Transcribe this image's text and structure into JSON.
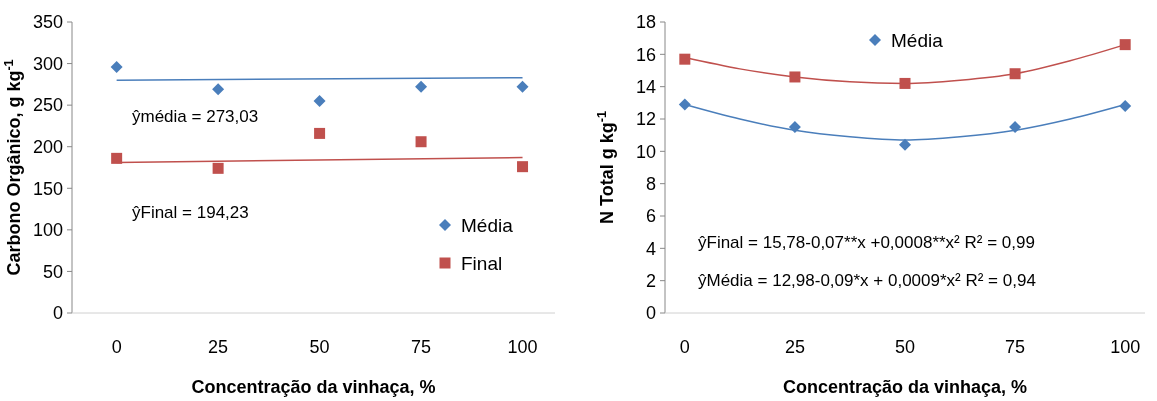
{
  "chart_data": [
    {
      "type": "scatter",
      "xlabel": "Concentração da vinhaça,  %",
      "ylabel": "Carbono Orgânico, g kg$^{-1}$",
      "xlim": [
        -11,
        108
      ],
      "xticks": [
        0,
        25,
        50,
        75,
        100
      ],
      "ylim": [
        0,
        350
      ],
      "yticks": [
        0,
        50,
        100,
        150,
        200,
        250,
        300,
        350
      ],
      "grid": false,
      "legend": "right",
      "annotations": [
        "ŷmédia = 273,03",
        "ŷFinal = 194,23"
      ],
      "series": [
        {
          "name": "Média",
          "color": "#4a7ebb",
          "marker": "diamond",
          "x": [
            0,
            25,
            50,
            75,
            100
          ],
          "values": [
            296,
            269,
            255,
            272,
            272
          ]
        },
        {
          "name": "Final",
          "color": "#c0504d",
          "marker": "square",
          "x": [
            0,
            25,
            50,
            75,
            100
          ],
          "values": [
            186,
            174,
            216,
            206,
            176
          ]
        },
        {
          "type": "line",
          "color": "#4a7ebb",
          "marker": "none",
          "x": [
            0,
            100
          ],
          "values": [
            280,
            283
          ]
        },
        {
          "type": "line",
          "color": "#c0504d",
          "marker": "none",
          "x": [
            0,
            100
          ],
          "values": [
            181,
            187
          ]
        }
      ]
    },
    {
      "type": "scatter",
      "xlabel": "Concentração da vinhaça,  %",
      "ylabel": "N Total  g kg$^{-1}$",
      "xlim": [
        -4.5,
        104.5
      ],
      "xticks": [
        0,
        25,
        50,
        75,
        100
      ],
      "ylim": [
        0,
        18
      ],
      "yticks": [
        0,
        2,
        4,
        6,
        8,
        10,
        12,
        14,
        16,
        18
      ],
      "grid": false,
      "legend": "top",
      "annotations": [
        "ŷFinal  = 15,78-0,07**x +0,0008**x²   R² = 0,99",
        "ŷMédia = 12,98-0,09*x + 0,0009*x²   R² = 0,94"
      ],
      "series": [
        {
          "name": "Média",
          "color": "#4a7ebb",
          "marker": "diamond",
          "x": [
            0,
            25,
            50,
            75,
            100
          ],
          "values": [
            12.9,
            11.5,
            10.4,
            11.5,
            12.8
          ]
        },
        {
          "color": "#c0504d",
          "marker": "square",
          "x": [
            0,
            25,
            50,
            75,
            100
          ],
          "values": [
            15.7,
            14.6,
            14.2,
            14.8,
            16.6
          ]
        },
        {
          "type": "line",
          "color": "#c0504d",
          "marker": "none",
          "x": [
            0,
            12.5,
            25,
            37.5,
            50,
            62.5,
            75,
            87.5,
            100
          ],
          "values": [
            15.8,
            15.1,
            14.6,
            14.3,
            14.2,
            14.4,
            14.8,
            15.6,
            16.6
          ]
        },
        {
          "type": "line",
          "color": "#4a7ebb",
          "marker": "none",
          "x": [
            0,
            12.5,
            25,
            37.5,
            50,
            62.5,
            75,
            87.5,
            100
          ],
          "values": [
            12.9,
            12.0,
            11.3,
            10.9,
            10.7,
            10.9,
            11.3,
            12.0,
            12.9
          ]
        }
      ]
    }
  ]
}
